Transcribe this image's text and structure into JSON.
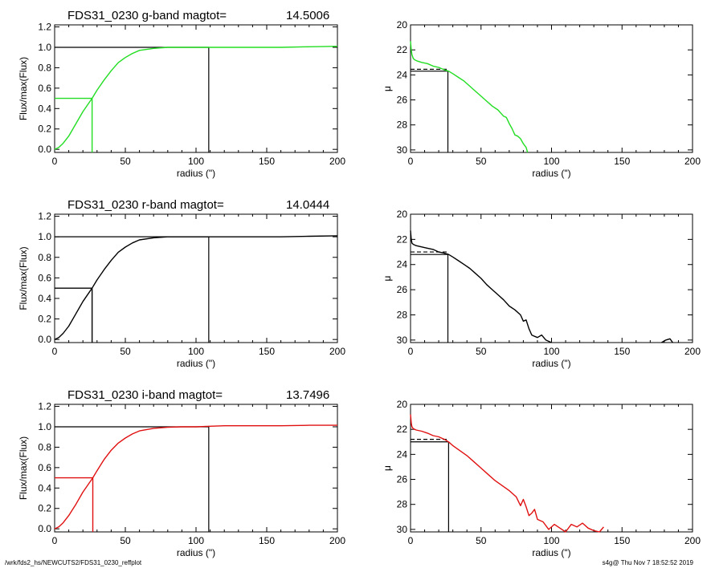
{
  "footer": {
    "path": "/wrk/fds2_hs/NEWCUTS2/FDS31_0230_reffplot",
    "stamp": "s4g@  Thu Nov  7 18:52:52 2019"
  },
  "colors": {
    "g": "#22dd22",
    "r": "#000000",
    "i": "#e01010",
    "axes": "#000000"
  },
  "chart_data": [
    {
      "type": "line",
      "band": "g",
      "panel": "growth",
      "title": "FDS31_0230 g-band  magtot=",
      "title_value": "14.5006",
      "xlabel": "radius (\")",
      "ylabel": "Flux/max(Flux)",
      "xlim": [
        0,
        200
      ],
      "ylim": [
        -0.03,
        1.22
      ],
      "xticks": [
        0,
        50,
        100,
        150,
        200
      ],
      "yticks": [
        0.0,
        0.2,
        0.4,
        0.6,
        0.8,
        1.0,
        1.2
      ],
      "ytick_labels": [
        "0.0",
        "0.2",
        "0.4",
        "0.6",
        "0.8",
        "1.0",
        "1.2"
      ],
      "reff": 26.5,
      "rtot": 109,
      "curve": {
        "x": [
          0,
          3,
          6,
          10,
          15,
          20,
          26.5,
          30,
          35,
          40,
          45,
          50,
          55,
          60,
          70,
          80,
          90,
          100,
          110,
          120,
          140,
          160,
          180,
          200
        ],
        "y": [
          0.0,
          0.02,
          0.06,
          0.13,
          0.25,
          0.37,
          0.5,
          0.58,
          0.68,
          0.77,
          0.85,
          0.9,
          0.94,
          0.97,
          0.99,
          1.0,
          1.0,
          1.0,
          1.0,
          1.0,
          1.0,
          1.0,
          1.005,
          1.01
        ]
      }
    },
    {
      "type": "line",
      "band": "g",
      "panel": "profile",
      "xlabel": "radius (\")",
      "ylabel": "μ",
      "xlim": [
        0,
        200
      ],
      "ylim": [
        30.2,
        20
      ],
      "y_inverted": true,
      "xticks": [
        0,
        50,
        100,
        150,
        200
      ],
      "yticks": [
        20,
        22,
        24,
        26,
        28,
        30
      ],
      "ytick_labels": [
        "20",
        "22",
        "24",
        "26",
        "28",
        "30"
      ],
      "reff": 26.5,
      "mu_eff": 23.7,
      "mu_mean": 23.55,
      "curve": {
        "x": [
          0,
          0.5,
          1,
          2,
          3,
          5,
          8,
          12,
          16,
          20,
          24,
          27,
          30,
          34,
          38,
          42,
          46,
          50,
          54,
          58,
          62,
          66,
          68,
          70,
          72,
          74,
          76,
          78,
          80,
          82,
          83
        ],
        "y": [
          21.3,
          22.0,
          22.4,
          22.7,
          22.8,
          22.9,
          23.0,
          23.1,
          23.3,
          23.4,
          23.6,
          23.7,
          23.9,
          24.2,
          24.5,
          24.9,
          25.3,
          25.7,
          26.1,
          26.5,
          26.8,
          27.3,
          27.4,
          27.9,
          28.3,
          28.8,
          28.9,
          29.1,
          29.5,
          29.8,
          30.2
        ]
      }
    },
    {
      "type": "line",
      "band": "r",
      "panel": "growth",
      "title": "FDS31_0230 r-band  magtot=",
      "title_value": "14.0444",
      "xlabel": "radius (\")",
      "ylabel": "Flux/max(Flux)",
      "xlim": [
        0,
        200
      ],
      "ylim": [
        -0.03,
        1.22
      ],
      "xticks": [
        0,
        50,
        100,
        150,
        200
      ],
      "yticks": [
        0.0,
        0.2,
        0.4,
        0.6,
        0.8,
        1.0,
        1.2
      ],
      "ytick_labels": [
        "0.0",
        "0.2",
        "0.4",
        "0.6",
        "0.8",
        "1.0",
        "1.2"
      ],
      "reff": 26.5,
      "rtot": 109,
      "curve": {
        "x": [
          0,
          3,
          6,
          10,
          15,
          20,
          26.5,
          30,
          35,
          40,
          45,
          50,
          55,
          60,
          70,
          80,
          90,
          100,
          110,
          120,
          140,
          160,
          180,
          200
        ],
        "y": [
          0.0,
          0.02,
          0.06,
          0.13,
          0.25,
          0.37,
          0.5,
          0.58,
          0.68,
          0.77,
          0.85,
          0.9,
          0.94,
          0.97,
          0.99,
          1.0,
          1.0,
          1.0,
          1.0,
          1.0,
          1.0,
          1.0,
          1.005,
          1.01
        ]
      }
    },
    {
      "type": "line",
      "band": "r",
      "panel": "profile",
      "xlabel": "radius (\")",
      "ylabel": "μ",
      "xlim": [
        0,
        200
      ],
      "ylim": [
        30.2,
        20
      ],
      "y_inverted": true,
      "xticks": [
        0,
        50,
        100,
        150,
        200
      ],
      "yticks": [
        20,
        22,
        24,
        26,
        28,
        30
      ],
      "ytick_labels": [
        "20",
        "22",
        "24",
        "26",
        "28",
        "30"
      ],
      "reff": 26.5,
      "mu_eff": 23.2,
      "mu_mean": 23.0,
      "curve": {
        "x": [
          0,
          0.5,
          1,
          2,
          4,
          8,
          12,
          16,
          20,
          24,
          27,
          30,
          34,
          38,
          42,
          46,
          50,
          54,
          58,
          62,
          66,
          70,
          74,
          78,
          80,
          82,
          84,
          86,
          88,
          90,
          93,
          96,
          100
        ],
        "y": [
          21.3,
          22.0,
          22.3,
          22.4,
          22.5,
          22.6,
          22.7,
          22.8,
          23.0,
          23.1,
          23.2,
          23.4,
          23.7,
          24.0,
          24.3,
          24.7,
          25.1,
          25.6,
          26.0,
          26.4,
          26.8,
          27.3,
          27.6,
          28.0,
          28.5,
          28.4,
          29.1,
          29.6,
          29.7,
          29.8,
          29.6,
          30.0,
          30.2
        ]
      },
      "curve2": {
        "x": [
          178,
          181,
          184,
          186
        ],
        "y": [
          30.2,
          30.0,
          29.9,
          30.2
        ]
      }
    },
    {
      "type": "line",
      "band": "i",
      "panel": "growth",
      "title": "FDS31_0230 i-band  magtot=",
      "title_value": "13.7496",
      "xlabel": "radius (\")",
      "ylabel": "Flux/max(Flux)",
      "xlim": [
        0,
        200
      ],
      "ylim": [
        -0.03,
        1.22
      ],
      "xticks": [
        0,
        50,
        100,
        150,
        200
      ],
      "yticks": [
        0.0,
        0.2,
        0.4,
        0.6,
        0.8,
        1.0,
        1.2
      ],
      "ytick_labels": [
        "0.0",
        "0.2",
        "0.4",
        "0.6",
        "0.8",
        "1.0",
        "1.2"
      ],
      "reff": 27,
      "rtot": 109,
      "curve": {
        "x": [
          0,
          3,
          6,
          10,
          15,
          20,
          27,
          30,
          35,
          40,
          45,
          50,
          55,
          60,
          70,
          80,
          90,
          100,
          110,
          120,
          140,
          160,
          180,
          200
        ],
        "y": [
          0.0,
          0.02,
          0.06,
          0.13,
          0.24,
          0.36,
          0.5,
          0.57,
          0.68,
          0.77,
          0.84,
          0.89,
          0.93,
          0.96,
          0.985,
          0.995,
          1.0,
          1.0,
          1.005,
          1.01,
          1.01,
          1.01,
          1.015,
          1.015
        ]
      }
    },
    {
      "type": "line",
      "band": "i",
      "panel": "profile",
      "xlabel": "radius (\")",
      "ylabel": "μ",
      "xlim": [
        0,
        200
      ],
      "ylim": [
        30.2,
        20
      ],
      "y_inverted": true,
      "xticks": [
        0,
        50,
        100,
        150,
        200
      ],
      "yticks": [
        20,
        22,
        24,
        26,
        28,
        30
      ],
      "ytick_labels": [
        "20",
        "22",
        "24",
        "26",
        "28",
        "30"
      ],
      "reff": 27,
      "mu_eff": 23.0,
      "mu_mean": 22.8,
      "curve": {
        "x": [
          0,
          0.5,
          1,
          2,
          4,
          8,
          12,
          16,
          20,
          24,
          27,
          30,
          35,
          40,
          45,
          50,
          55,
          60,
          65,
          70,
          75,
          78,
          80,
          82,
          84,
          86,
          88,
          90,
          94,
          98,
          102,
          106,
          110,
          114,
          118,
          122,
          126,
          130,
          134,
          137
        ],
        "y": [
          20.8,
          21.5,
          21.8,
          21.95,
          22.05,
          22.15,
          22.3,
          22.5,
          22.6,
          22.8,
          23.0,
          23.3,
          23.7,
          24.1,
          24.6,
          25.1,
          25.6,
          26.1,
          26.5,
          26.9,
          27.4,
          28.1,
          27.6,
          28.2,
          28.9,
          28.7,
          28.4,
          29.2,
          29.4,
          30.0,
          29.6,
          29.9,
          30.2,
          29.6,
          29.8,
          29.5,
          29.9,
          30.1,
          30.2,
          29.8
        ]
      }
    }
  ]
}
